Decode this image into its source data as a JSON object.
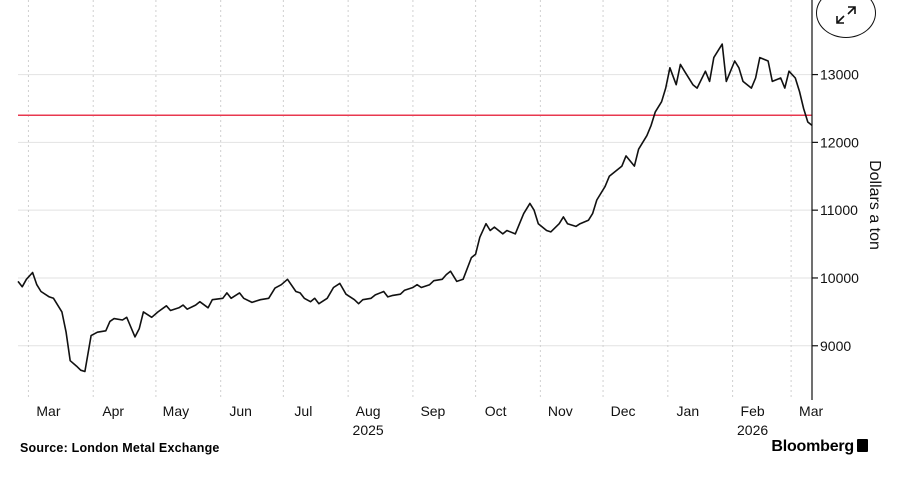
{
  "chart_data": {
    "type": "line",
    "x_start": "2025-02-24",
    "x_end": "2026-03-11",
    "ylim": [
      8200,
      14100
    ],
    "yticks": [
      9000,
      10000,
      11000,
      12000,
      13000
    ],
    "ylabel": "Dollars a ton",
    "month_ticks": [
      {
        "label": "Mar",
        "date": "2025-03-01"
      },
      {
        "label": "Apr",
        "date": "2025-04-01"
      },
      {
        "label": "May",
        "date": "2025-05-01"
      },
      {
        "label": "Jun",
        "date": "2025-06-01"
      },
      {
        "label": "Jul",
        "date": "2025-07-01"
      },
      {
        "label": "Aug",
        "date": "2025-08-01"
      },
      {
        "label": "Sep",
        "date": "2025-09-01"
      },
      {
        "label": "Oct",
        "date": "2025-10-01"
      },
      {
        "label": "Nov",
        "date": "2025-11-01"
      },
      {
        "label": "Dec",
        "date": "2025-12-01"
      },
      {
        "label": "Jan",
        "date": "2026-01-01"
      },
      {
        "label": "Feb",
        "date": "2026-02-01"
      },
      {
        "label": "Mar",
        "date": "2026-03-01"
      }
    ],
    "year_labels": [
      {
        "label": "2025",
        "date": "2025-08-01"
      },
      {
        "label": "2026",
        "date": "2026-02-01"
      }
    ],
    "reference_line": {
      "value": 12400,
      "color": "#e8384f"
    },
    "series": [
      {
        "color": "#111111",
        "points": [
          [
            "2025-02-24",
            9950
          ],
          [
            "2025-02-26",
            9870
          ],
          [
            "2025-02-28",
            9980
          ],
          [
            "2025-03-03",
            10080
          ],
          [
            "2025-03-05",
            9900
          ],
          [
            "2025-03-07",
            9800
          ],
          [
            "2025-03-11",
            9720
          ],
          [
            "2025-03-13",
            9700
          ],
          [
            "2025-03-17",
            9500
          ],
          [
            "2025-03-19",
            9200
          ],
          [
            "2025-03-21",
            8780
          ],
          [
            "2025-03-24",
            8700
          ],
          [
            "2025-03-26",
            8640
          ],
          [
            "2025-03-28",
            8620
          ],
          [
            "2025-03-31",
            9150
          ],
          [
            "2025-04-03",
            9200
          ],
          [
            "2025-04-07",
            9220
          ],
          [
            "2025-04-09",
            9360
          ],
          [
            "2025-04-11",
            9400
          ],
          [
            "2025-04-15",
            9380
          ],
          [
            "2025-04-17",
            9420
          ],
          [
            "2025-04-21",
            9130
          ],
          [
            "2025-04-23",
            9250
          ],
          [
            "2025-04-25",
            9500
          ],
          [
            "2025-04-29",
            9420
          ],
          [
            "2025-05-02",
            9500
          ],
          [
            "2025-05-06",
            9590
          ],
          [
            "2025-05-08",
            9520
          ],
          [
            "2025-05-12",
            9560
          ],
          [
            "2025-05-14",
            9600
          ],
          [
            "2025-05-16",
            9540
          ],
          [
            "2025-05-20",
            9600
          ],
          [
            "2025-05-22",
            9650
          ],
          [
            "2025-05-26",
            9560
          ],
          [
            "2025-05-28",
            9680
          ],
          [
            "2025-06-02",
            9700
          ],
          [
            "2025-06-04",
            9780
          ],
          [
            "2025-06-06",
            9700
          ],
          [
            "2025-06-10",
            9780
          ],
          [
            "2025-06-12",
            9700
          ],
          [
            "2025-06-16",
            9640
          ],
          [
            "2025-06-18",
            9660
          ],
          [
            "2025-06-20",
            9680
          ],
          [
            "2025-06-24",
            9700
          ],
          [
            "2025-06-27",
            9850
          ],
          [
            "2025-06-30",
            9900
          ],
          [
            "2025-07-03",
            9980
          ],
          [
            "2025-07-07",
            9800
          ],
          [
            "2025-07-09",
            9780
          ],
          [
            "2025-07-11",
            9700
          ],
          [
            "2025-07-14",
            9650
          ],
          [
            "2025-07-16",
            9700
          ],
          [
            "2025-07-18",
            9620
          ],
          [
            "2025-07-22",
            9700
          ],
          [
            "2025-07-25",
            9860
          ],
          [
            "2025-07-28",
            9920
          ],
          [
            "2025-07-31",
            9760
          ],
          [
            "2025-08-04",
            9680
          ],
          [
            "2025-08-06",
            9620
          ],
          [
            "2025-08-08",
            9680
          ],
          [
            "2025-08-12",
            9700
          ],
          [
            "2025-08-14",
            9750
          ],
          [
            "2025-08-18",
            9800
          ],
          [
            "2025-08-20",
            9720
          ],
          [
            "2025-08-22",
            9740
          ],
          [
            "2025-08-26",
            9760
          ],
          [
            "2025-08-28",
            9820
          ],
          [
            "2025-09-01",
            9860
          ],
          [
            "2025-09-03",
            9900
          ],
          [
            "2025-09-05",
            9860
          ],
          [
            "2025-09-09",
            9900
          ],
          [
            "2025-09-11",
            9960
          ],
          [
            "2025-09-15",
            9980
          ],
          [
            "2025-09-17",
            10050
          ],
          [
            "2025-09-19",
            10100
          ],
          [
            "2025-09-22",
            9950
          ],
          [
            "2025-09-25",
            9980
          ],
          [
            "2025-09-29",
            10300
          ],
          [
            "2025-10-01",
            10350
          ],
          [
            "2025-10-03",
            10600
          ],
          [
            "2025-10-06",
            10800
          ],
          [
            "2025-10-08",
            10700
          ],
          [
            "2025-10-10",
            10750
          ],
          [
            "2025-10-14",
            10650
          ],
          [
            "2025-10-16",
            10700
          ],
          [
            "2025-10-20",
            10650
          ],
          [
            "2025-10-22",
            10800
          ],
          [
            "2025-10-24",
            10950
          ],
          [
            "2025-10-27",
            11100
          ],
          [
            "2025-10-29",
            11000
          ],
          [
            "2025-10-31",
            10800
          ],
          [
            "2025-11-04",
            10700
          ],
          [
            "2025-11-06",
            10680
          ],
          [
            "2025-11-10",
            10800
          ],
          [
            "2025-11-12",
            10900
          ],
          [
            "2025-11-14",
            10800
          ],
          [
            "2025-11-18",
            10760
          ],
          [
            "2025-11-20",
            10800
          ],
          [
            "2025-11-24",
            10850
          ],
          [
            "2025-11-26",
            10950
          ],
          [
            "2025-11-28",
            11150
          ],
          [
            "2025-12-02",
            11350
          ],
          [
            "2025-12-04",
            11500
          ],
          [
            "2025-12-08",
            11600
          ],
          [
            "2025-12-10",
            11650
          ],
          [
            "2025-12-12",
            11800
          ],
          [
            "2025-12-16",
            11650
          ],
          [
            "2025-12-18",
            11900
          ],
          [
            "2025-12-22",
            12100
          ],
          [
            "2025-12-24",
            12250
          ],
          [
            "2025-12-26",
            12450
          ],
          [
            "2025-12-29",
            12600
          ],
          [
            "2025-12-31",
            12800
          ],
          [
            "2026-01-02",
            13100
          ],
          [
            "2026-01-05",
            12850
          ],
          [
            "2026-01-07",
            13150
          ],
          [
            "2026-01-09",
            13050
          ],
          [
            "2026-01-13",
            12850
          ],
          [
            "2026-01-15",
            12800
          ],
          [
            "2026-01-19",
            13050
          ],
          [
            "2026-01-21",
            12900
          ],
          [
            "2026-01-23",
            13250
          ],
          [
            "2026-01-27",
            13450
          ],
          [
            "2026-01-29",
            12900
          ],
          [
            "2026-02-02",
            13200
          ],
          [
            "2026-02-04",
            13100
          ],
          [
            "2026-02-06",
            12900
          ],
          [
            "2026-02-10",
            12800
          ],
          [
            "2026-02-12",
            12950
          ],
          [
            "2026-02-14",
            13250
          ],
          [
            "2026-02-18",
            13200
          ],
          [
            "2026-02-20",
            12900
          ],
          [
            "2026-02-24",
            12950
          ],
          [
            "2026-02-26",
            12800
          ],
          [
            "2026-02-28",
            13050
          ],
          [
            "2026-03-03",
            12950
          ],
          [
            "2026-03-05",
            12750
          ],
          [
            "2026-03-07",
            12500
          ],
          [
            "2026-03-09",
            12300
          ],
          [
            "2026-03-11",
            12250
          ]
        ]
      }
    ]
  },
  "footer": {
    "source": "Source: London Metal Exchange",
    "brand": "Bloomberg"
  },
  "controls": {
    "expand_icon": "expand-arrows-icon"
  }
}
